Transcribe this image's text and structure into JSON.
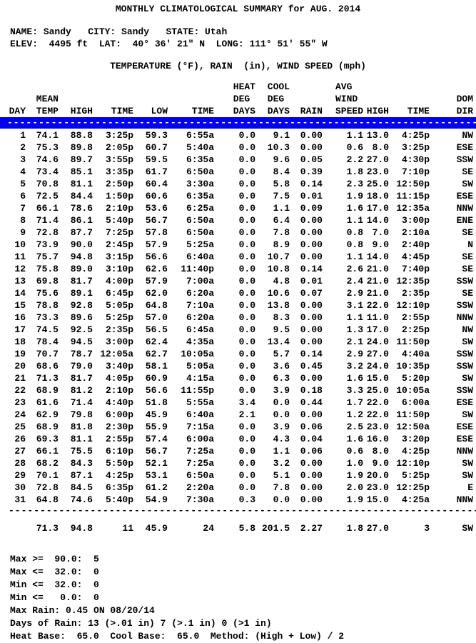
{
  "title": "MONTHLY CLIMATOLOGICAL SUMMARY for AUG. 2014",
  "station": {
    "name_label": "NAME:",
    "name": "Sandy",
    "city_label": "CITY:",
    "city": "Sandy",
    "state_label": "STATE:",
    "state": "Utah",
    "elev_label": "ELEV:",
    "elev": "4495 ft",
    "lat_label": "LAT:",
    "lat": "40° 36' 21\" N",
    "long_label": "LONG:",
    "long": "111° 51' 55\" W"
  },
  "subtitle": "TEMPERATURE (°F), RAIN  (in), WIND SPEED (mph)",
  "table": {
    "columns": [
      "DAY",
      "MEAN\nTEMP",
      "HIGH",
      "TIME",
      "LOW",
      "TIME",
      "HEAT\nDEG\nDAYS",
      "COOL\nDEG\nDAYS",
      "RAIN",
      "AVG\nWIND\nSPEED",
      "HIGH",
      "TIME",
      "DOM\nDIR"
    ],
    "separator": "----------------------------------------------------------------------------------------------------",
    "rows": [
      [
        "1",
        "74.1",
        "88.8",
        "3:25p",
        "59.3",
        "6:55a",
        "0.0",
        "9.1",
        "0.00",
        "1.1",
        "13.0",
        "4:25p",
        "NW"
      ],
      [
        "2",
        "75.3",
        "89.8",
        "2:05p",
        "60.7",
        "5:40a",
        "0.0",
        "10.3",
        "0.00",
        "0.6",
        "8.0",
        "3:25p",
        "ESE"
      ],
      [
        "3",
        "74.6",
        "89.7",
        "3:55p",
        "59.5",
        "6:35a",
        "0.0",
        "9.6",
        "0.05",
        "2.2",
        "27.0",
        "4:30p",
        "SSW"
      ],
      [
        "4",
        "73.4",
        "85.1",
        "3:35p",
        "61.7",
        "6:50a",
        "0.0",
        "8.4",
        "0.39",
        "1.8",
        "23.0",
        "7:10p",
        "SE"
      ],
      [
        "5",
        "70.8",
        "81.1",
        "2:50p",
        "60.4",
        "3:30a",
        "0.0",
        "5.8",
        "0.14",
        "2.3",
        "25.0",
        "12:50p",
        "SW"
      ],
      [
        "6",
        "72.5",
        "84.4",
        "1:50p",
        "60.6",
        "6:35a",
        "0.0",
        "7.5",
        "0.01",
        "1.9",
        "18.0",
        "11:15p",
        "ESE"
      ],
      [
        "7",
        "66.1",
        "78.6",
        "2:10p",
        "53.6",
        "6:25a",
        "0.0",
        "1.1",
        "0.09",
        "1.6",
        "17.0",
        "12:35a",
        "NNW"
      ],
      [
        "8",
        "71.4",
        "86.1",
        "5:40p",
        "56.7",
        "6:50a",
        "0.0",
        "6.4",
        "0.00",
        "1.1",
        "14.0",
        "3:00p",
        "ENE"
      ],
      [
        "9",
        "72.8",
        "87.7",
        "7:25p",
        "57.8",
        "6:50a",
        "0.0",
        "7.8",
        "0.00",
        "0.8",
        "7.0",
        "2:10a",
        "SE"
      ],
      [
        "10",
        "73.9",
        "90.0",
        "2:45p",
        "57.9",
        "5:25a",
        "0.0",
        "8.9",
        "0.00",
        "0.8",
        "9.0",
        "2:40p",
        "N"
      ],
      [
        "11",
        "75.7",
        "94.8",
        "3:15p",
        "56.6",
        "6:40a",
        "0.0",
        "10.7",
        "0.00",
        "1.1",
        "14.0",
        "4:45p",
        "SE"
      ],
      [
        "12",
        "75.8",
        "89.0",
        "3:10p",
        "62.6",
        "11:40p",
        "0.0",
        "10.8",
        "0.14",
        "2.6",
        "21.0",
        "7:40p",
        "SE"
      ],
      [
        "13",
        "69.8",
        "81.7",
        "4:00p",
        "57.9",
        "7:00a",
        "0.0",
        "4.8",
        "0.01",
        "2.4",
        "21.0",
        "12:35p",
        "SSW"
      ],
      [
        "14",
        "75.6",
        "89.1",
        "6:45p",
        "62.0",
        "6:20a",
        "0.0",
        "10.6",
        "0.07",
        "2.9",
        "21.0",
        "2:35p",
        "SE"
      ],
      [
        "15",
        "78.8",
        "92.8",
        "5:05p",
        "64.8",
        "7:10a",
        "0.0",
        "13.8",
        "0.00",
        "3.1",
        "22.0",
        "12:10p",
        "SSW"
      ],
      [
        "16",
        "73.3",
        "89.6",
        "5:25p",
        "57.0",
        "6:20a",
        "0.0",
        "8.3",
        "0.00",
        "1.1",
        "11.0",
        "2:55p",
        "NNW"
      ],
      [
        "17",
        "74.5",
        "92.5",
        "2:35p",
        "56.5",
        "6:45a",
        "0.0",
        "9.5",
        "0.00",
        "1.3",
        "17.0",
        "2:25p",
        "NW"
      ],
      [
        "18",
        "78.4",
        "94.5",
        "3:00p",
        "62.4",
        "4:35a",
        "0.0",
        "13.4",
        "0.00",
        "2.1",
        "24.0",
        "11:50p",
        "SW"
      ],
      [
        "19",
        "70.7",
        "78.7",
        "12:05a",
        "62.7",
        "10:05a",
        "0.0",
        "5.7",
        "0.14",
        "2.9",
        "27.0",
        "4:40a",
        "SSW"
      ],
      [
        "20",
        "68.6",
        "79.0",
        "3:40p",
        "58.1",
        "5:05a",
        "0.0",
        "3.6",
        "0.45",
        "3.2",
        "24.0",
        "10:35p",
        "SSW"
      ],
      [
        "21",
        "71.3",
        "81.7",
        "4:05p",
        "60.9",
        "4:15a",
        "0.0",
        "6.3",
        "0.00",
        "1.6",
        "15.0",
        "5:20p",
        "SW"
      ],
      [
        "22",
        "68.9",
        "81.2",
        "2:10p",
        "56.6",
        "11:55p",
        "0.0",
        "3.9",
        "0.18",
        "3.3",
        "25.0",
        "10:05a",
        "SSW"
      ],
      [
        "23",
        "61.6",
        "71.4",
        "4:40p",
        "51.8",
        "5:55a",
        "3.4",
        "0.0",
        "0.44",
        "1.7",
        "22.0",
        "6:00a",
        "ESE"
      ],
      [
        "24",
        "62.9",
        "79.8",
        "6:00p",
        "45.9",
        "6:40a",
        "2.1",
        "0.0",
        "0.00",
        "1.2",
        "22.0",
        "11:50p",
        "SW"
      ],
      [
        "25",
        "68.9",
        "81.8",
        "2:30p",
        "55.9",
        "7:15a",
        "0.0",
        "3.9",
        "0.06",
        "2.5",
        "23.0",
        "12:50a",
        "ESE"
      ],
      [
        "26",
        "69.3",
        "81.1",
        "2:55p",
        "57.4",
        "6:00a",
        "0.0",
        "4.3",
        "0.04",
        "1.6",
        "16.0",
        "3:20p",
        "ESE"
      ],
      [
        "27",
        "66.1",
        "75.5",
        "6:10p",
        "56.7",
        "7:25a",
        "0.0",
        "1.1",
        "0.06",
        "0.6",
        "8.0",
        "4:25p",
        "NNW"
      ],
      [
        "28",
        "68.2",
        "84.3",
        "5:50p",
        "52.1",
        "7:25a",
        "0.0",
        "3.2",
        "0.00",
        "1.0",
        "9.0",
        "12:10p",
        "SW"
      ],
      [
        "29",
        "70.1",
        "87.1",
        "4:25p",
        "53.1",
        "6:50a",
        "0.0",
        "5.1",
        "0.00",
        "1.9",
        "20.0",
        "5:25p",
        "SW"
      ],
      [
        "30",
        "72.8",
        "84.5",
        "6:35p",
        "61.2",
        "2:20a",
        "0.0",
        "7.8",
        "0.00",
        "2.0",
        "23.0",
        "12:25p",
        "E"
      ],
      [
        "31",
        "64.8",
        "74.6",
        "5:40p",
        "54.9",
        "7:30a",
        "0.3",
        "0.0",
        "0.00",
        "1.9",
        "15.0",
        "4:25a",
        "NNW"
      ]
    ],
    "summary": [
      "",
      "71.3",
      "94.8",
      "11",
      "45.9",
      "24",
      "5.8",
      "201.5",
      "2.27",
      "1.8",
      "27.0",
      "3",
      "SW"
    ]
  },
  "footer": {
    "lines": [
      "Max >=  90.0:  5",
      "Max <=  32.0:  0",
      "Min <=  32.0:  0",
      "Min <=   0.0:  0",
      "Max Rain: 0.45 ON 08/20/14",
      "Days of Rain: 13 (>.01 in) 7 (>.1 in) 0 (>1 in)",
      "Heat Base:  65.0  Cool Base:  65.0  Method: (High + Low) / 2"
    ]
  },
  "colors": {
    "background": "#ffffff",
    "text": "#000000",
    "highlight": "#0101ee",
    "highlight_dashes": "#ffffff"
  }
}
